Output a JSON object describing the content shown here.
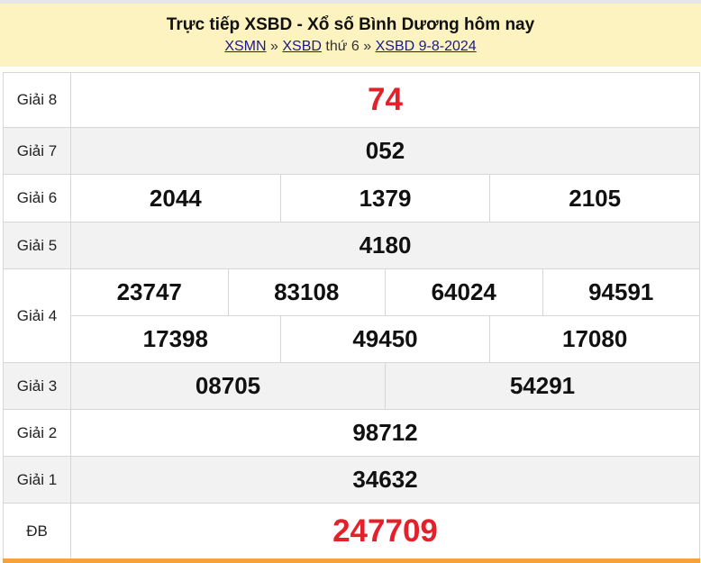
{
  "header": {
    "title": "Trực tiếp XSBD - Xổ số Bình Dương hôm nay",
    "breadcrumb": {
      "link1": "XSMN",
      "sep1": "»",
      "link2": "XSBD",
      "day": "thứ 6",
      "sep2": "»",
      "link3": "XSBD 9-8-2024"
    }
  },
  "results": {
    "g8": {
      "label": "Giải 8",
      "values": [
        "74"
      ]
    },
    "g7": {
      "label": "Giải 7",
      "values": [
        "052"
      ]
    },
    "g6": {
      "label": "Giải 6",
      "values": [
        "2044",
        "1379",
        "2105"
      ]
    },
    "g5": {
      "label": "Giải 5",
      "values": [
        "4180"
      ]
    },
    "g4": {
      "label": "Giải 4",
      "values": [
        "23747",
        "83108",
        "64024",
        "94591",
        "17398",
        "49450",
        "17080"
      ]
    },
    "g3": {
      "label": "Giải 3",
      "values": [
        "08705",
        "54291"
      ]
    },
    "g2": {
      "label": "Giải 2",
      "values": [
        "98712"
      ]
    },
    "g1": {
      "label": "Giải 1",
      "values": [
        "34632"
      ]
    },
    "db": {
      "label": "ĐB",
      "values": [
        "247709"
      ]
    }
  },
  "colors": {
    "header_bg": "#fdf3c0",
    "highlight": "#e3212b",
    "accent_bar": "#f5a23a"
  }
}
